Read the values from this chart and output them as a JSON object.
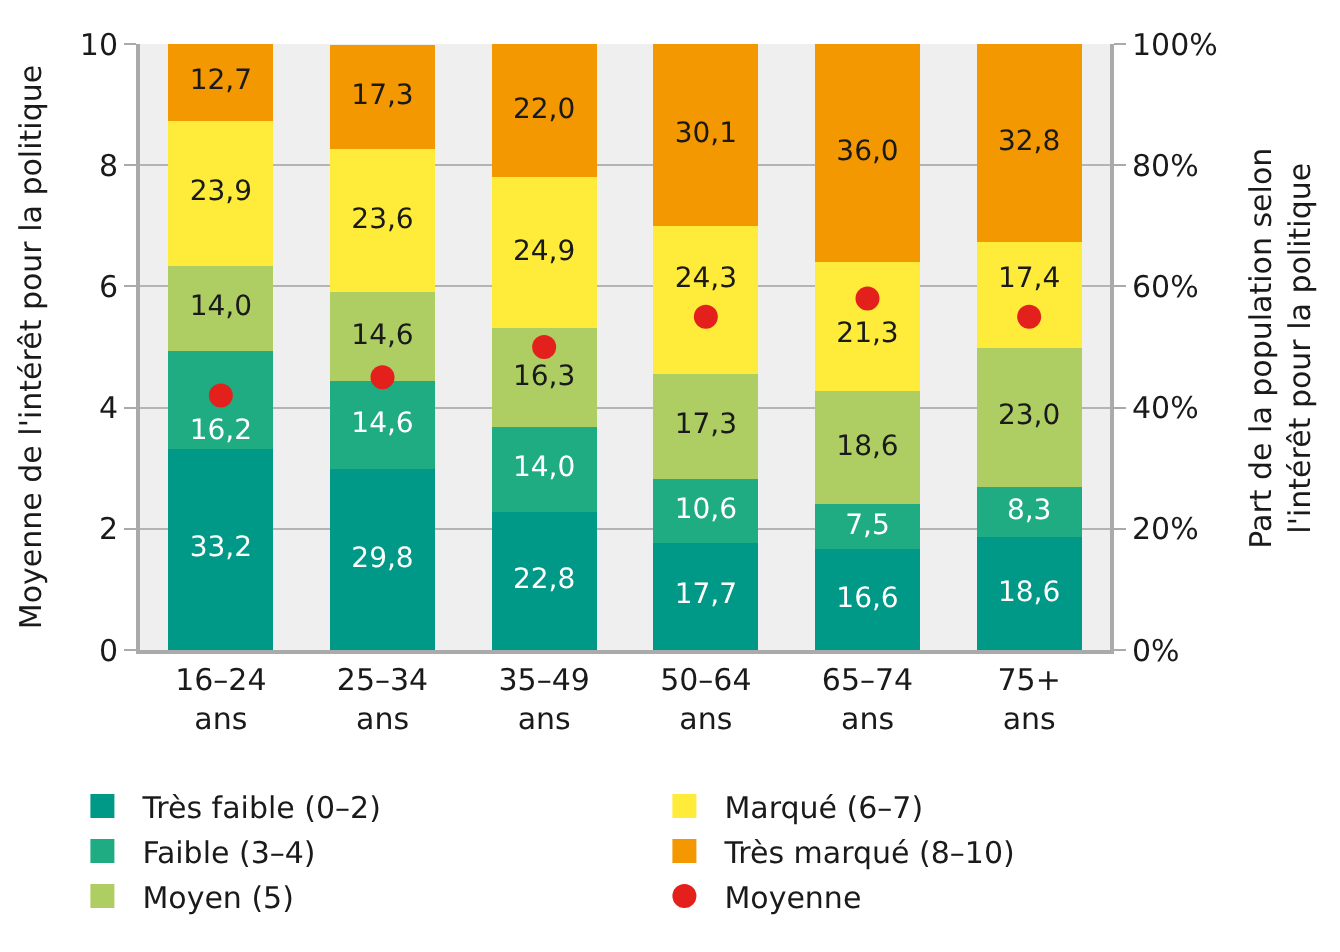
{
  "chart_data": {
    "type": "bar",
    "stacked": true,
    "ylabel": "Moyenne de l'intérêt pour la politique",
    "y2label": "Part de la population selon l'intérêt pour la politique",
    "categories": [
      "16–24 ans",
      "25–34 ans",
      "35–49 ans",
      "50–64 ans",
      "65–74 ans",
      "75+ ans"
    ],
    "series": [
      {
        "name": "Très faible (0–2)",
        "color": "#009886",
        "axis": "y2",
        "values": [
          33.2,
          29.8,
          22.8,
          17.7,
          16.6,
          18.6
        ],
        "value_labels": [
          "33,2",
          "29,8",
          "22,8",
          "17,7",
          "16,6",
          "18,6"
        ]
      },
      {
        "name": "Faible (3–4)",
        "color": "#20ac82",
        "axis": "y2",
        "values": [
          16.2,
          14.6,
          14.0,
          10.6,
          7.5,
          8.3
        ],
        "value_labels": [
          "16,2",
          "14,6",
          "14,0",
          "10,6",
          "7,5",
          "8,3"
        ]
      },
      {
        "name": "Moyen (5)",
        "color": "#aecd63",
        "axis": "y2",
        "values": [
          14.0,
          14.6,
          16.3,
          17.3,
          18.6,
          23.0
        ],
        "value_labels": [
          "14,0",
          "14,6",
          "16,3",
          "17,3",
          "18,6",
          "23,0"
        ]
      },
      {
        "name": "Marqué (6–7)",
        "color": "#ffec3a",
        "axis": "y2",
        "values": [
          23.9,
          23.6,
          24.9,
          24.3,
          21.3,
          17.4
        ],
        "value_labels": [
          "23,9",
          "23,6",
          "24,9",
          "24,3",
          "21,3",
          "17,4"
        ]
      },
      {
        "name": "Très marqué (8–10)",
        "color": "#f39800",
        "axis": "y2",
        "values": [
          12.7,
          17.3,
          22.0,
          30.1,
          36.0,
          32.8
        ],
        "value_labels": [
          "12,7",
          "17,3",
          "22,0",
          "30,1",
          "36,0",
          "32,8"
        ]
      },
      {
        "name": "Moyenne",
        "type": "scatter",
        "marker": "circle",
        "color": "#e3201b",
        "axis": "y",
        "values": [
          4.2,
          4.5,
          5.0,
          5.5,
          5.8,
          5.5
        ]
      }
    ],
    "ylim": [
      0,
      10
    ],
    "yticks": [
      0,
      2,
      4,
      6,
      8,
      10
    ],
    "y2lim": [
      0,
      100
    ],
    "y2ticks": [
      {
        "value": 0,
        "label": "0%"
      },
      {
        "value": 20,
        "label": "20%"
      },
      {
        "value": 40,
        "label": "40%"
      },
      {
        "value": 60,
        "label": "60%"
      },
      {
        "value": 80,
        "label": "80%"
      },
      {
        "value": 100,
        "label": "100%"
      }
    ],
    "grid": "y",
    "legend": "bottom"
  }
}
